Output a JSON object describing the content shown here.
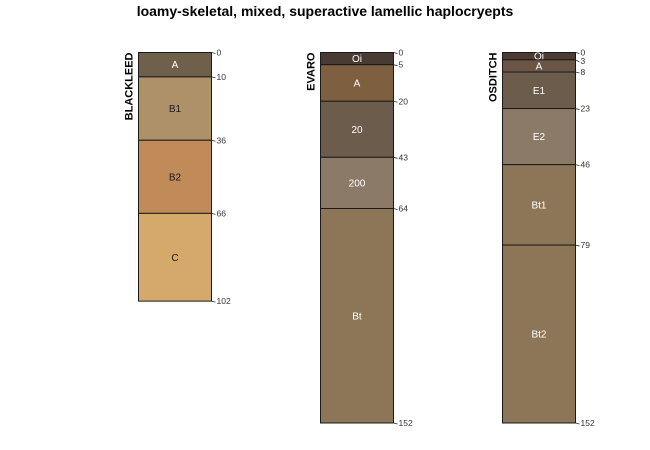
{
  "title": "loamy-skeletal, mixed, superactive lamellic haplocryepts",
  "profiles": [
    {
      "name": "BLACKLEED",
      "horizons": [
        {
          "label": "A",
          "top": 0,
          "bottom": 10,
          "color": "#6f604c",
          "text_color": "#ffffff"
        },
        {
          "label": "B1",
          "top": 10,
          "bottom": 36,
          "color": "#ae9168",
          "text_color": "#1a1a1a"
        },
        {
          "label": "B2",
          "top": 36,
          "bottom": 66,
          "color": "#c08b59",
          "text_color": "#1a1a1a"
        },
        {
          "label": "C",
          "top": 66,
          "bottom": 102,
          "color": "#d5a96c",
          "text_color": "#1a1a1a"
        }
      ],
      "depth_labels": [
        "0",
        "10",
        "36",
        "66",
        "102"
      ]
    },
    {
      "name": "EVARO",
      "horizons": [
        {
          "label": "Oi",
          "top": 0,
          "bottom": 5,
          "color": "#4a3a34",
          "text_color": "#ffffff"
        },
        {
          "label": "A",
          "top": 5,
          "bottom": 20,
          "color": "#7e6040",
          "text_color": "#ffffff"
        },
        {
          "label": "20",
          "top": 20,
          "bottom": 43,
          "color": "#6b5c4c",
          "text_color": "#ffffff"
        },
        {
          "label": "200",
          "top": 43,
          "bottom": 64,
          "color": "#8c7a68",
          "text_color": "#ffffff"
        },
        {
          "label": "Bt",
          "top": 64,
          "bottom": 152,
          "color": "#8c7657",
          "text_color": "#ffffff"
        }
      ],
      "depth_labels": [
        "0",
        "5",
        "20",
        "43",
        "64",
        "152"
      ]
    },
    {
      "name": "OSDITCH",
      "horizons": [
        {
          "label": "Oi",
          "top": 0,
          "bottom": 3,
          "color": "#4d3b36",
          "text_color": "#ffffff"
        },
        {
          "label": "A",
          "top": 3,
          "bottom": 8,
          "color": "#6b5646",
          "text_color": "#ffffff"
        },
        {
          "label": "E1",
          "top": 8,
          "bottom": 23,
          "color": "#6b5c4c",
          "text_color": "#ffffff"
        },
        {
          "label": "E2",
          "top": 23,
          "bottom": 46,
          "color": "#8c7a68",
          "text_color": "#ffffff"
        },
        {
          "label": "Bt1",
          "top": 46,
          "bottom": 79,
          "color": "#8c7657",
          "text_color": "#ffffff"
        },
        {
          "label": "Bt2",
          "top": 79,
          "bottom": 152,
          "color": "#8c7657",
          "text_color": "#ffffff"
        }
      ],
      "depth_labels": [
        "0",
        "3",
        "8",
        "23",
        "46",
        "79",
        "152"
      ]
    }
  ]
}
